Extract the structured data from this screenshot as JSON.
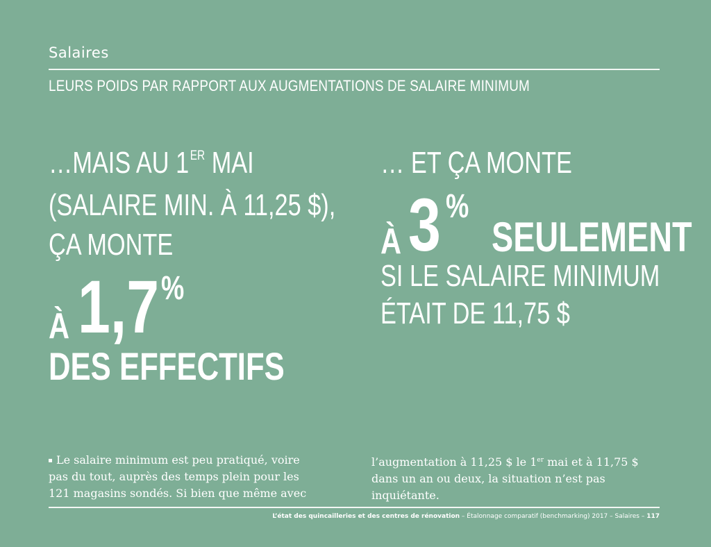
{
  "header": {
    "section": "Salaires",
    "subtitle": "LEURS POIDS PAR RAPPORT AUX AUGMENTATIONS DE SALAIRE MINIMUM"
  },
  "left": {
    "line1_pre": "…MAIS AU 1",
    "line1_sup": "ER",
    "line1_post": " MAI",
    "line2": "(SALAIRE MIN. À 11,25 $),",
    "line3": "ÇA MONTE",
    "a_word": "À",
    "big_number": "1,7",
    "percent": "%",
    "line5": "DES EFFECTIFS"
  },
  "right": {
    "line1": "… ET ÇA MONTE",
    "a_word": "À",
    "big_number": "3",
    "percent": "%",
    "seulement": "SEULEMENT",
    "line3": "SI LE SALAIRE MINIMUM",
    "line4": "ÉTAIT DE 11,75 $"
  },
  "body": {
    "left_text": "Le salaire minimum est peu pratiqué, voire pas du tout, auprès des temps plein pour les 121 magasins sondés. Si bien que même avec",
    "right_pre": "l’augmentation à 11,25 $ le 1",
    "right_sup": "er",
    "right_post": " mai et à 11,75 $ dans un an ou deux, la situation n’est pas inquiétante."
  },
  "footer": {
    "bold_title": "L’état des quincailleries et des centres de rénovation",
    "rest": " – Étalonnage comparatif (benchmarking) 2017 – Salaires – ",
    "page": "117"
  }
}
